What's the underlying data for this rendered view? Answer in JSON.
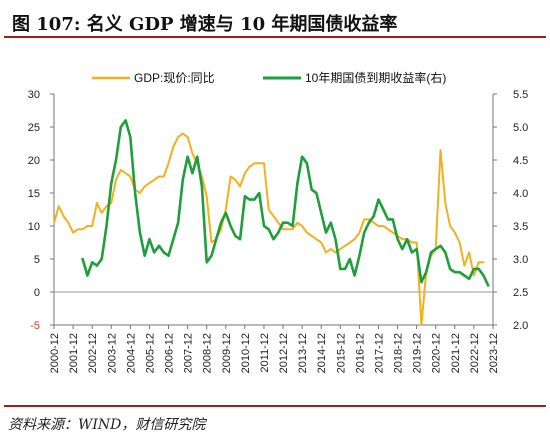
{
  "header": {
    "title": "图 107:  名义 GDP 增速与 10 年期国债收益率"
  },
  "footer": {
    "source": "资料来源：WIND，财信研究院"
  },
  "colors": {
    "gdp": "#f2b01e",
    "bond": "#1f9e3c",
    "frame": "#9e1f1f",
    "negative_tick": "#e03a1e"
  },
  "chart_data": {
    "type": "line",
    "title": "",
    "legend_position": "top",
    "grid": false,
    "x_axis": {
      "type": "date",
      "range": [
        "2000-12",
        "2023-12"
      ],
      "tick_labels": [
        "2000-12",
        "2001-12",
        "2002-12",
        "2003-12",
        "2004-12",
        "2005-12",
        "2006-12",
        "2007-12",
        "2008-12",
        "2009-12",
        "2010-12",
        "2011-12",
        "2012-12",
        "2013-12",
        "2014-12",
        "2015-12",
        "2016-12",
        "2017-12",
        "2018-12",
        "2019-12",
        "2020-12",
        "2021-12",
        "2022-12",
        "2023-12"
      ]
    },
    "y_left": {
      "range": [
        -5,
        30
      ],
      "ticks": [
        -5,
        0,
        5,
        10,
        15,
        20,
        25,
        30
      ],
      "tick_labels": [
        "-5",
        "0",
        "5",
        "10",
        "15",
        "20",
        "25",
        "30"
      ]
    },
    "y_right": {
      "range": [
        2.0,
        5.5
      ],
      "ticks": [
        2.0,
        2.5,
        3.0,
        3.5,
        4.0,
        4.5,
        5.0,
        5.5
      ],
      "tick_labels": [
        "2.0",
        "2.5",
        "3.0",
        "3.5",
        "4.0",
        "4.5",
        "5.0",
        "5.5"
      ]
    },
    "series": [
      {
        "name": "GDP:现价:同比",
        "axis": "left",
        "color": "#f2b01e",
        "x": [
          "2000-12",
          "2001-03",
          "2001-06",
          "2001-09",
          "2001-12",
          "2002-03",
          "2002-06",
          "2002-09",
          "2002-12",
          "2003-03",
          "2003-06",
          "2003-09",
          "2003-12",
          "2004-03",
          "2004-06",
          "2004-09",
          "2004-12",
          "2005-03",
          "2005-06",
          "2005-09",
          "2005-12",
          "2006-03",
          "2006-06",
          "2006-09",
          "2006-12",
          "2007-03",
          "2007-06",
          "2007-09",
          "2007-12",
          "2008-03",
          "2008-06",
          "2008-09",
          "2008-12",
          "2009-03",
          "2009-06",
          "2009-09",
          "2009-12",
          "2010-03",
          "2010-06",
          "2010-09",
          "2010-12",
          "2011-03",
          "2011-06",
          "2011-09",
          "2011-12",
          "2012-03",
          "2012-06",
          "2012-09",
          "2012-12",
          "2013-03",
          "2013-06",
          "2013-09",
          "2013-12",
          "2014-03",
          "2014-06",
          "2014-09",
          "2014-12",
          "2015-03",
          "2015-06",
          "2015-09",
          "2015-12",
          "2016-03",
          "2016-06",
          "2016-09",
          "2016-12",
          "2017-03",
          "2017-06",
          "2017-09",
          "2017-12",
          "2018-03",
          "2018-06",
          "2018-09",
          "2018-12",
          "2019-03",
          "2019-06",
          "2019-09",
          "2019-12",
          "2020-03",
          "2020-06",
          "2020-09",
          "2020-12",
          "2021-03",
          "2021-06",
          "2021-09",
          "2021-12",
          "2022-03",
          "2022-06",
          "2022-09",
          "2022-12",
          "2023-03",
          "2023-06"
        ],
        "values": [
          10.5,
          13.0,
          11.5,
          10.5,
          9.0,
          9.5,
          9.5,
          10.0,
          10.0,
          13.5,
          12.0,
          13.0,
          13.5,
          17.0,
          18.5,
          18.0,
          17.5,
          15.5,
          15.0,
          16.0,
          16.5,
          17.0,
          17.5,
          17.5,
          19.5,
          22.0,
          23.5,
          24.0,
          23.5,
          21.0,
          19.5,
          17.5,
          14.5,
          7.5,
          8.0,
          9.5,
          12.5,
          17.5,
          17.0,
          16.0,
          18.0,
          19.0,
          19.5,
          19.5,
          19.5,
          12.5,
          11.5,
          10.5,
          9.5,
          9.5,
          9.5,
          10.5,
          10.0,
          9.0,
          8.5,
          8.0,
          7.5,
          6.0,
          6.5,
          6.0,
          6.5,
          7.0,
          7.5,
          8.0,
          9.0,
          11.0,
          11.0,
          10.5,
          10.0,
          10.0,
          9.5,
          9.0,
          8.5,
          8.0,
          8.0,
          7.5,
          7.5,
          -5.0,
          3.0,
          5.5,
          6.5,
          21.5,
          13.5,
          10.0,
          9.0,
          7.5,
          4.0,
          6.0,
          2.5,
          4.5,
          4.5
        ]
      },
      {
        "name": "10年期国债到期收益率(右)",
        "axis": "right",
        "color": "#1f9e3c",
        "x": [
          "2002-06",
          "2002-09",
          "2002-12",
          "2003-03",
          "2003-06",
          "2003-09",
          "2003-12",
          "2004-03",
          "2004-06",
          "2004-09",
          "2004-12",
          "2005-03",
          "2005-06",
          "2005-09",
          "2005-12",
          "2006-03",
          "2006-06",
          "2006-09",
          "2006-12",
          "2007-03",
          "2007-06",
          "2007-09",
          "2007-12",
          "2008-03",
          "2008-06",
          "2008-09",
          "2008-12",
          "2009-03",
          "2009-06",
          "2009-09",
          "2009-12",
          "2010-03",
          "2010-06",
          "2010-09",
          "2010-12",
          "2011-03",
          "2011-06",
          "2011-09",
          "2011-12",
          "2012-03",
          "2012-06",
          "2012-09",
          "2012-12",
          "2013-03",
          "2013-06",
          "2013-09",
          "2013-12",
          "2014-03",
          "2014-06",
          "2014-09",
          "2014-12",
          "2015-03",
          "2015-06",
          "2015-09",
          "2015-12",
          "2016-03",
          "2016-06",
          "2016-09",
          "2016-12",
          "2017-03",
          "2017-06",
          "2017-09",
          "2017-12",
          "2018-03",
          "2018-06",
          "2018-09",
          "2018-12",
          "2019-03",
          "2019-06",
          "2019-09",
          "2019-12",
          "2020-03",
          "2020-06",
          "2020-09",
          "2020-12",
          "2021-03",
          "2021-06",
          "2021-09",
          "2021-12",
          "2022-03",
          "2022-06",
          "2022-09",
          "2022-12",
          "2023-03",
          "2023-06",
          "2023-09"
        ],
        "values": [
          3.0,
          2.75,
          2.95,
          2.9,
          3.0,
          3.5,
          4.15,
          4.5,
          5.0,
          5.1,
          4.85,
          4.0,
          3.4,
          3.05,
          3.3,
          3.1,
          3.2,
          3.1,
          3.05,
          3.3,
          3.55,
          4.2,
          4.55,
          4.3,
          4.55,
          4.1,
          2.95,
          3.05,
          3.3,
          3.55,
          3.7,
          3.5,
          3.35,
          3.3,
          3.95,
          3.9,
          3.9,
          4.0,
          3.5,
          3.45,
          3.3,
          3.4,
          3.55,
          3.55,
          3.5,
          4.15,
          4.55,
          4.45,
          4.05,
          4.0,
          3.7,
          3.4,
          3.55,
          3.3,
          2.85,
          2.85,
          3.0,
          2.75,
          3.05,
          3.4,
          3.55,
          3.65,
          3.9,
          3.75,
          3.6,
          3.6,
          3.3,
          3.15,
          3.3,
          3.1,
          3.15,
          2.65,
          2.8,
          3.1,
          3.15,
          3.2,
          3.1,
          2.85,
          2.8,
          2.8,
          2.75,
          2.7,
          2.85,
          2.85,
          2.75,
          2.6
        ]
      }
    ]
  }
}
